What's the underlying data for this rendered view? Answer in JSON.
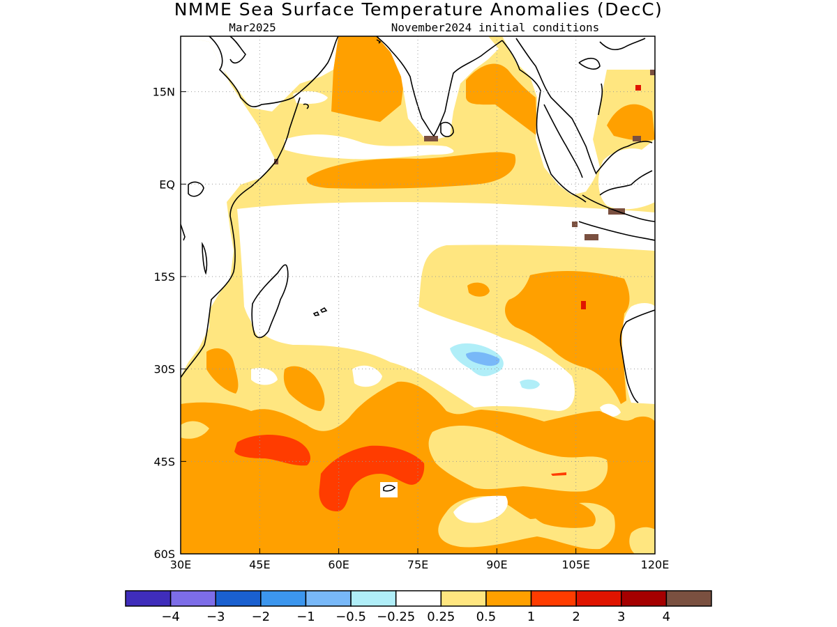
{
  "title": "NMME Sea Surface Temperature Anomalies (DecC)",
  "valid_month": "Mar2025",
  "init_conditions": "November2024 initial conditions",
  "x_ticks": [
    {
      "lon": 30,
      "label": "30E"
    },
    {
      "lon": 45,
      "label": "45E"
    },
    {
      "lon": 60,
      "label": "60E"
    },
    {
      "lon": 75,
      "label": "75E"
    },
    {
      "lon": 90,
      "label": "90E"
    },
    {
      "lon": 105,
      "label": "105E"
    },
    {
      "lon": 120,
      "label": "120E"
    }
  ],
  "y_ticks": [
    {
      "lat": 15,
      "label": "15N"
    },
    {
      "lat": 0,
      "label": "EQ"
    },
    {
      "lat": -15,
      "label": "15S"
    },
    {
      "lat": -30,
      "label": "30S"
    },
    {
      "lat": -45,
      "label": "45S"
    },
    {
      "lat": -60,
      "label": "60S"
    }
  ],
  "map_extent": {
    "lon_min": 30,
    "lon_max": 120,
    "lat_min": -60,
    "lat_max": 24
  },
  "colorbar": {
    "colors": [
      "#3f2dbb",
      "#7d6de8",
      "#1a60d0",
      "#3c96ee",
      "#78b8f8",
      "#b0eef8",
      "#ffffff",
      "#ffe680",
      "#ffa000",
      "#ff3c00",
      "#e01400",
      "#a50000",
      "#7a5040"
    ],
    "labels": [
      "−4",
      "−3",
      "−2",
      "−1",
      "−0.5",
      "−0.25",
      "0.25",
      "0.5",
      "1",
      "2",
      "3",
      "4"
    ]
  },
  "anomaly_colors": {
    "pale_yellow": "#ffe680",
    "orange": "#ffa000",
    "red_orange": "#ff3c00",
    "red": "#e01400",
    "brown": "#7a5040",
    "light_cyan": "#b0eef8",
    "light_blue": "#78b8f8"
  }
}
